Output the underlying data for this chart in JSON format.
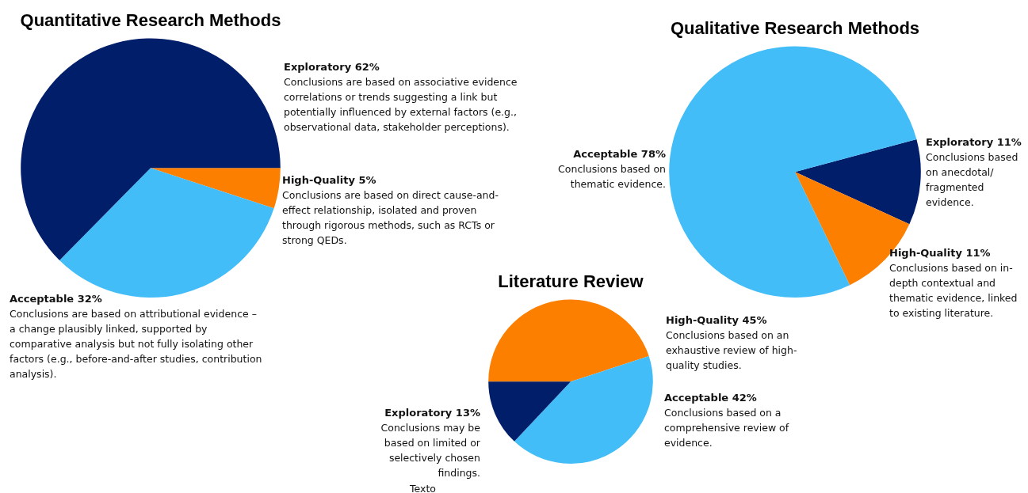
{
  "chart_data": [
    {
      "type": "pie",
      "title": "Quantitative Research Methods",
      "categories": [
        "High-Quality",
        "Acceptable",
        "Exploratory"
      ],
      "values": [
        5,
        32,
        62
      ],
      "value_labels": [
        "5%",
        "32%",
        "62%"
      ],
      "colors": [
        "#fd7f00",
        "#42bdf8",
        "#001e6a"
      ],
      "annotations": [
        "Conclusions are based on direct cause-and-effect relationship, isolated and proven through rigorous methods, such as RCTs or strong QEDs.",
        "Conclusions are based on attributional evidence – a change plausibly linked, supported by comparative analysis but not fully isolating other factors (e.g., before-and-after studies, contribution analysis).",
        "Conclusions are based on associative evidence correlations or trends suggesting a link but potentially influenced by external factors (e.g., observational data, stakeholder perceptions)."
      ]
    },
    {
      "type": "pie",
      "title": "Qualitative Research Methods",
      "categories": [
        "Exploratory",
        "High-Quality",
        "Acceptable"
      ],
      "values": [
        11,
        11,
        78
      ],
      "value_labels": [
        "11%",
        "11%",
        "78%"
      ],
      "colors": [
        "#001e6a",
        "#fd7f00",
        "#42bdf8"
      ],
      "annotations": [
        "Conclusions based on anecdotal/ fragmented evidence.",
        "Conclusions based on in-depth contextual and thematic evidence, linked to existing literature.",
        "Conclusions based on thematic evidence."
      ]
    },
    {
      "type": "pie",
      "title": "Literature Review",
      "categories": [
        "High-Quality",
        "Acceptable",
        "Exploratory"
      ],
      "values": [
        45,
        42,
        13
      ],
      "value_labels": [
        "45%",
        "42%",
        "13%"
      ],
      "colors": [
        "#fd7f00",
        "#42bdf8",
        "#001e6a"
      ],
      "annotations": [
        "Conclusions based on an exhaustive review of high-quality studies.",
        "Conclusions based on a comprehensive review of evidence.",
        "Conclusions may be based on limited or selectively chosen findings.",
        "Texto"
      ]
    }
  ]
}
